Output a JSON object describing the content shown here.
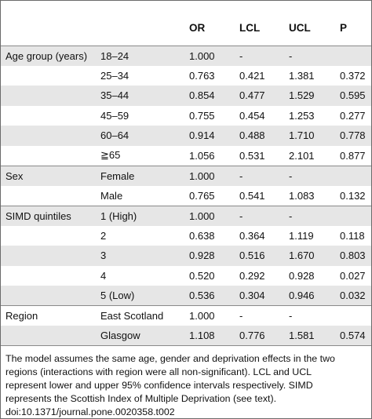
{
  "table": {
    "columns": [
      "",
      "",
      "OR",
      "LCL",
      "UCL",
      "P"
    ],
    "rows": [
      {
        "group": "Age group (years)",
        "level": "18–24",
        "or": "1.000",
        "lcl": "-",
        "ucl": "-",
        "p": ""
      },
      {
        "group": "",
        "level": "25–34",
        "or": "0.763",
        "lcl": "0.421",
        "ucl": "1.381",
        "p": "0.372"
      },
      {
        "group": "",
        "level": "35–44",
        "or": "0.854",
        "lcl": "0.477",
        "ucl": "1.529",
        "p": "0.595"
      },
      {
        "group": "",
        "level": "45–59",
        "or": "0.755",
        "lcl": "0.454",
        "ucl": "1.253",
        "p": "0.277"
      },
      {
        "group": "",
        "level": "60–64",
        "or": "0.914",
        "lcl": "0.488",
        "ucl": "1.710",
        "p": "0.778"
      },
      {
        "group": "",
        "level": "≧65",
        "or": "1.056",
        "lcl": "0.531",
        "ucl": "2.101",
        "p": "0.877"
      },
      {
        "group": "Sex",
        "level": "Female",
        "or": "1.000",
        "lcl": "-",
        "ucl": "-",
        "p": ""
      },
      {
        "group": "",
        "level": "Male",
        "or": "0.765",
        "lcl": "0.541",
        "ucl": "1.083",
        "p": "0.132"
      },
      {
        "group": "SIMD quintiles",
        "level": "1 (High)",
        "or": "1.000",
        "lcl": "-",
        "ucl": "-",
        "p": ""
      },
      {
        "group": "",
        "level": "2",
        "or": "0.638",
        "lcl": "0.364",
        "ucl": "1.119",
        "p": "0.118"
      },
      {
        "group": "",
        "level": "3",
        "or": "0.928",
        "lcl": "0.516",
        "ucl": "1.670",
        "p": "0.803"
      },
      {
        "group": "",
        "level": "4",
        "or": "0.520",
        "lcl": "0.292",
        "ucl": "0.928",
        "p": "0.027"
      },
      {
        "group": "",
        "level": "5 (Low)",
        "or": "0.536",
        "lcl": "0.304",
        "ucl": "0.946",
        "p": "0.032"
      },
      {
        "group": "Region",
        "level": "East Scotland",
        "or": "1.000",
        "lcl": "-",
        "ucl": "-",
        "p": ""
      },
      {
        "group": "",
        "level": "Glasgow",
        "or": "1.108",
        "lcl": "0.776",
        "ucl": "1.581",
        "p": "0.574"
      }
    ]
  },
  "footnote": {
    "lines": [
      "The model assumes the same age, gender and deprivation effects in the two",
      "regions (interactions with region were all non-significant). LCL and UCL",
      "represent lower and upper 95% confidence intervals respectively. SIMD",
      "represents the Scottish Index of Multiple Deprivation (see text).",
      "doi:10.1371/journal.pone.0020358.t002"
    ]
  },
  "colors": {
    "shaded_row": "#e6e6e6",
    "rule": "#8a8a8a",
    "border": "#6b6b6b"
  }
}
